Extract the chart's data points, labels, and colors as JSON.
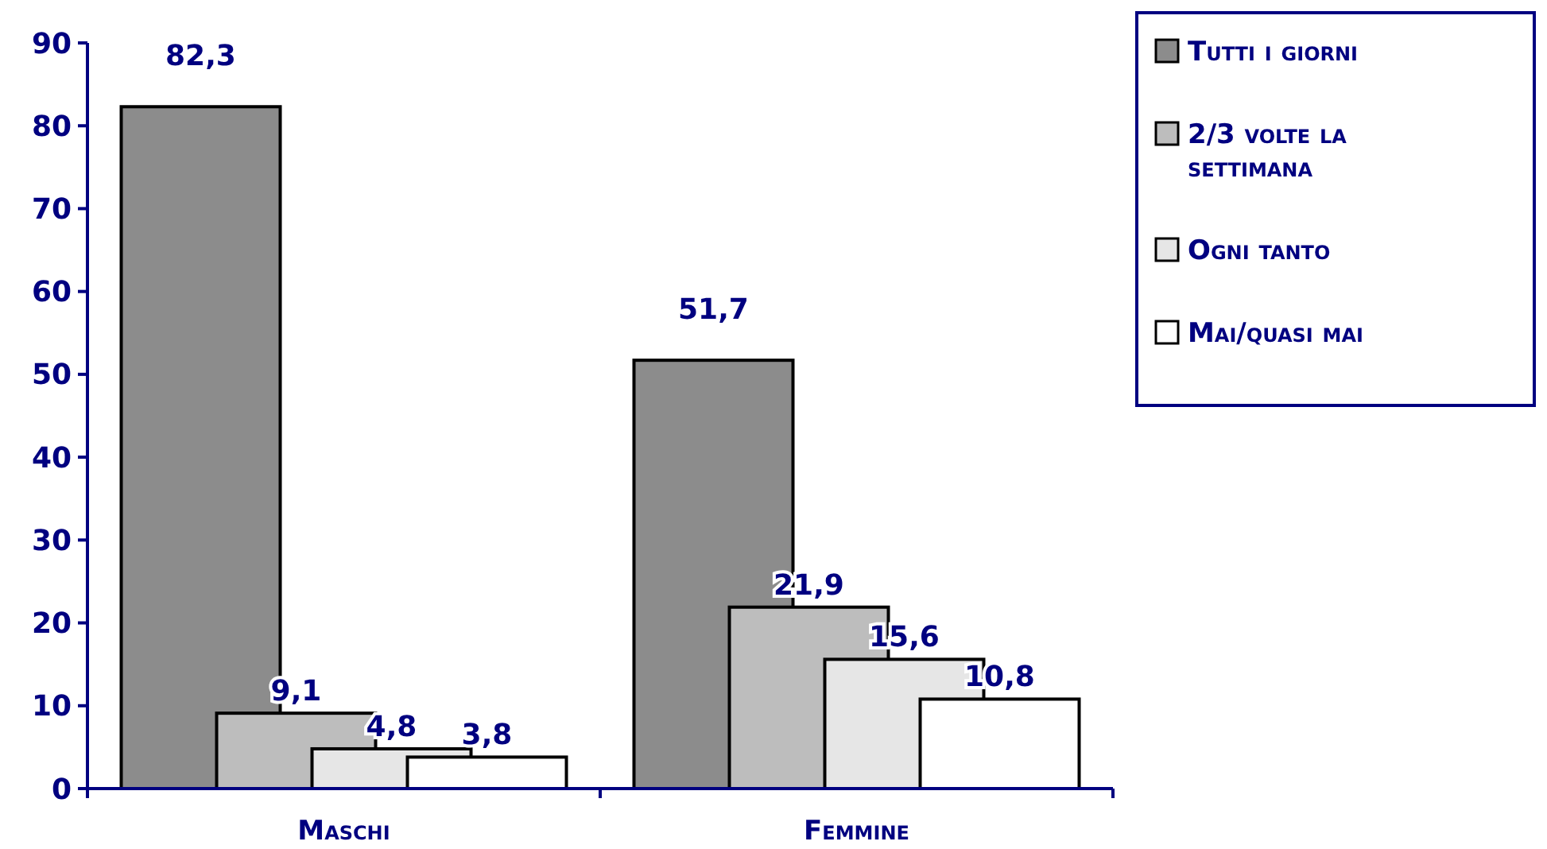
{
  "chart_data": {
    "type": "bar",
    "categories": [
      "Maschi",
      "Femmine"
    ],
    "series": [
      {
        "name": "Tutti i giorni",
        "color": "#8c8c8c",
        "values": [
          82.3,
          51.7
        ],
        "value_labels": [
          "82,3",
          "51,7"
        ]
      },
      {
        "name": "2/3 volte la settimana",
        "color": "#bdbdbd",
        "values": [
          9.1,
          21.9
        ],
        "value_labels": [
          "9,1",
          "21,9"
        ]
      },
      {
        "name": "Ogni tanto",
        "color": "#e6e6e6",
        "values": [
          4.8,
          15.6
        ],
        "value_labels": [
          "4,8",
          "15,6"
        ]
      },
      {
        "name": "Mai/quasi mai",
        "color": "#ffffff",
        "values": [
          3.8,
          10.8
        ],
        "value_labels": [
          "3,8",
          "10,8"
        ]
      }
    ],
    "ylim": [
      0,
      90
    ],
    "yticks": [
      0,
      10,
      20,
      30,
      40,
      50,
      60,
      70,
      80,
      90
    ],
    "grid": false,
    "legend": "right"
  }
}
